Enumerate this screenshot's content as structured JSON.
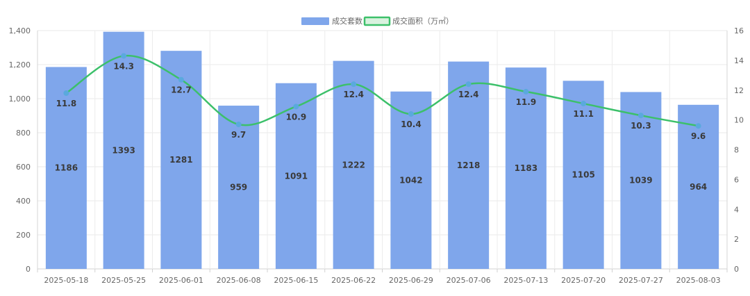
{
  "chart_data": {
    "type": "bar",
    "categories": [
      "2025-05-18",
      "2025-05-25",
      "2025-06-01",
      "2025-06-08",
      "2025-06-15",
      "2025-06-22",
      "2025-06-29",
      "2025-07-06",
      "2025-07-13",
      "2025-07-20",
      "2025-07-27",
      "2025-08-03"
    ],
    "series": [
      {
        "name": "成交套数",
        "type": "bar",
        "axis": "left",
        "color": "#7fa6eb",
        "values": [
          1186,
          1393,
          1281,
          959,
          1091,
          1222,
          1042,
          1218,
          1183,
          1105,
          1039,
          964
        ],
        "labels": [
          "1186",
          "1393",
          "1281",
          "959",
          "1091",
          "1222",
          "1042",
          "1218",
          "1183",
          "1105",
          "1039",
          "964"
        ]
      },
      {
        "name": "成交面积（万㎡）",
        "type": "line",
        "axis": "right",
        "color": "#3cc06a",
        "point_color": "#5aa9dd",
        "values": [
          11.8,
          14.3,
          12.7,
          9.7,
          10.9,
          12.4,
          10.4,
          12.4,
          11.9,
          11.1,
          10.3,
          9.6
        ],
        "labels": [
          "11.8",
          "14.3",
          "12.7",
          "9.7",
          "10.9",
          "12.4",
          "10.4",
          "12.4",
          "11.9",
          "11.1",
          "10.3",
          "9.6"
        ]
      }
    ],
    "y_left": {
      "min": 0,
      "max": 1400,
      "ticks": [
        "0",
        "200",
        "400",
        "600",
        "800",
        "1,000",
        "1,200",
        "1,400"
      ]
    },
    "y_right": {
      "min": 0,
      "max": 16,
      "ticks": [
        "0",
        "2",
        "4",
        "6",
        "8",
        "10",
        "12",
        "14",
        "16"
      ]
    },
    "grid": true,
    "legend_position": "top-center"
  }
}
